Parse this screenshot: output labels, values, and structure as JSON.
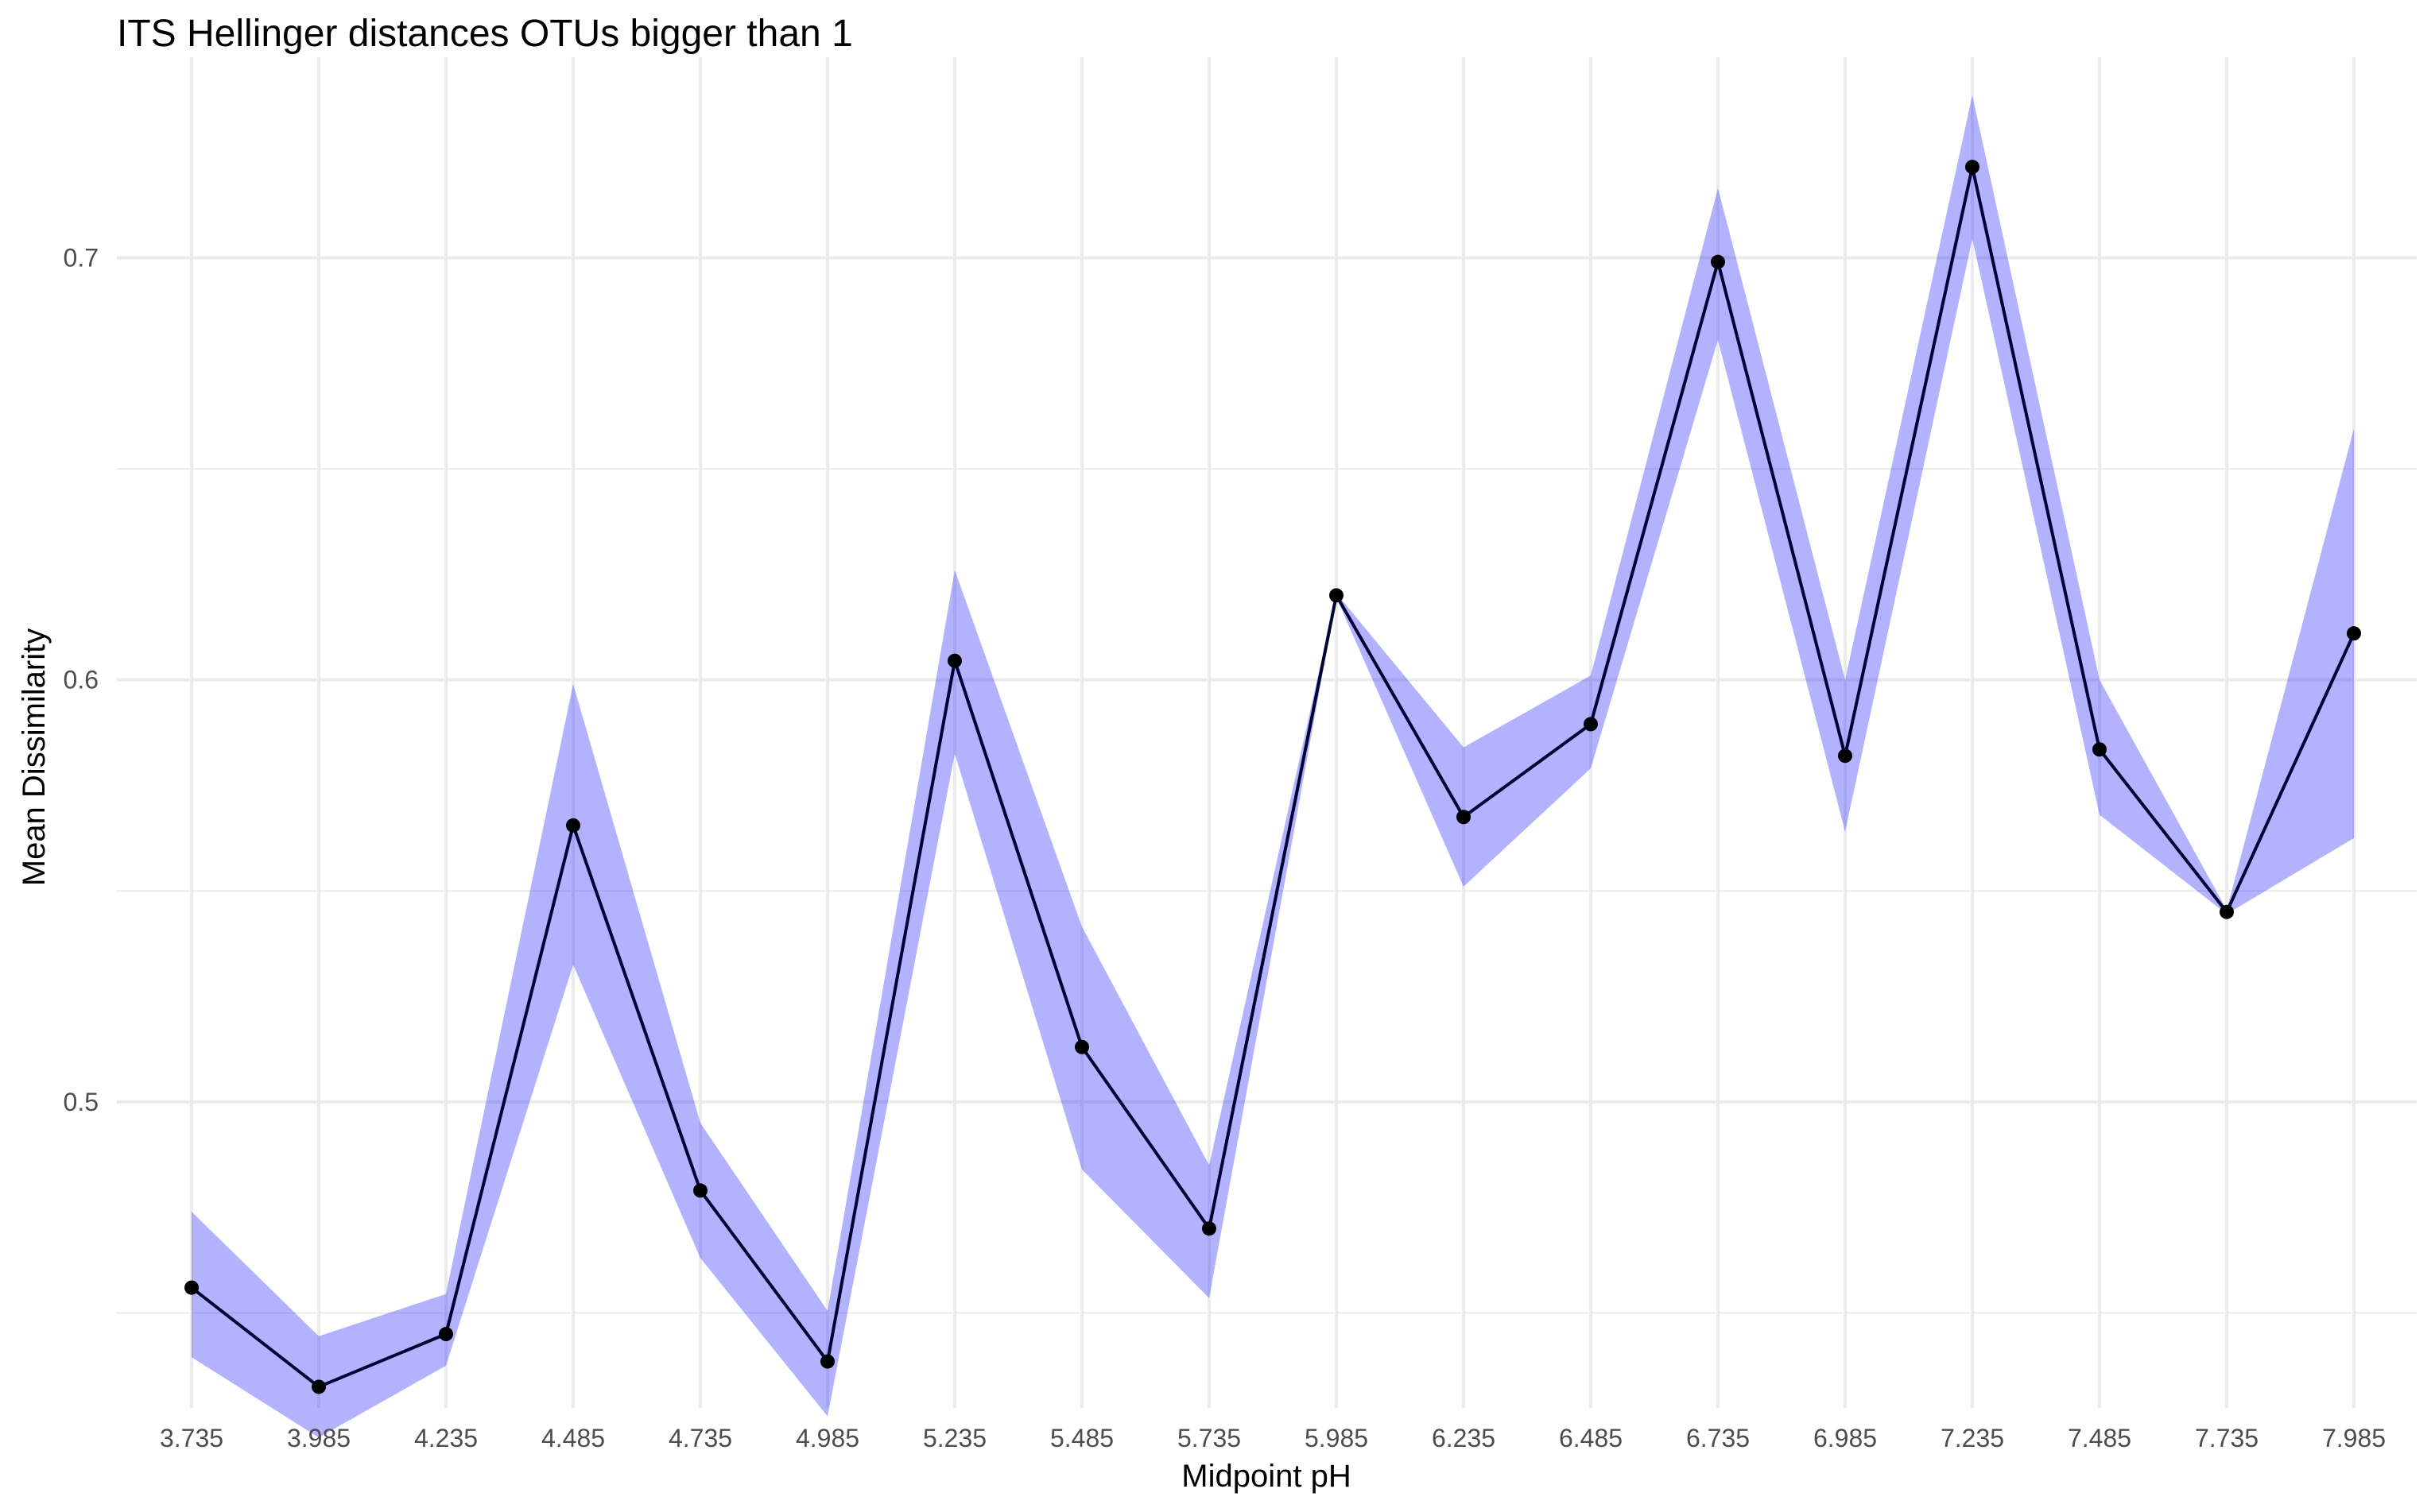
{
  "chart_data": {
    "type": "line",
    "title": "ITS Hellinger distances OTUs bigger than 1",
    "xlabel": "Midpoint pH",
    "ylabel": "Mean Dissimilarity",
    "x": [
      "3.735",
      "3.985",
      "4.235",
      "4.485",
      "4.735",
      "4.985",
      "5.235",
      "5.485",
      "5.735",
      "5.985",
      "6.235",
      "6.485",
      "6.735",
      "6.985",
      "7.235",
      "7.485",
      "7.735",
      "7.985"
    ],
    "y_ticks": [
      "0.5",
      "0.6",
      "0.7"
    ],
    "ylim": [
      0.4275,
      0.7475
    ],
    "grid": true,
    "series": [
      {
        "values": [
          0.456,
          0.4325,
          0.445,
          0.5655,
          0.479,
          0.4385,
          0.6045,
          0.513,
          0.47,
          0.62,
          0.5675,
          0.5895,
          0.699,
          0.582,
          0.7215,
          0.5835,
          0.545,
          0.611
        ],
        "lower": [
          0.4395,
          0.4205,
          0.4375,
          0.5325,
          0.463,
          0.4255,
          0.5825,
          0.484,
          0.4535,
          0.6195,
          0.551,
          0.579,
          0.6805,
          0.564,
          0.7045,
          0.568,
          0.5445,
          0.5625
        ],
        "upper": [
          0.474,
          0.4445,
          0.4545,
          0.599,
          0.495,
          0.4505,
          0.626,
          0.5415,
          0.485,
          0.6205,
          0.584,
          0.601,
          0.7165,
          0.6,
          0.7385,
          0.6,
          0.5455,
          0.6595
        ],
        "line_color": "#000033",
        "point_color": "#000000",
        "ribbon_color": "#0000ff",
        "ribbon_opacity": 0.3
      }
    ]
  }
}
